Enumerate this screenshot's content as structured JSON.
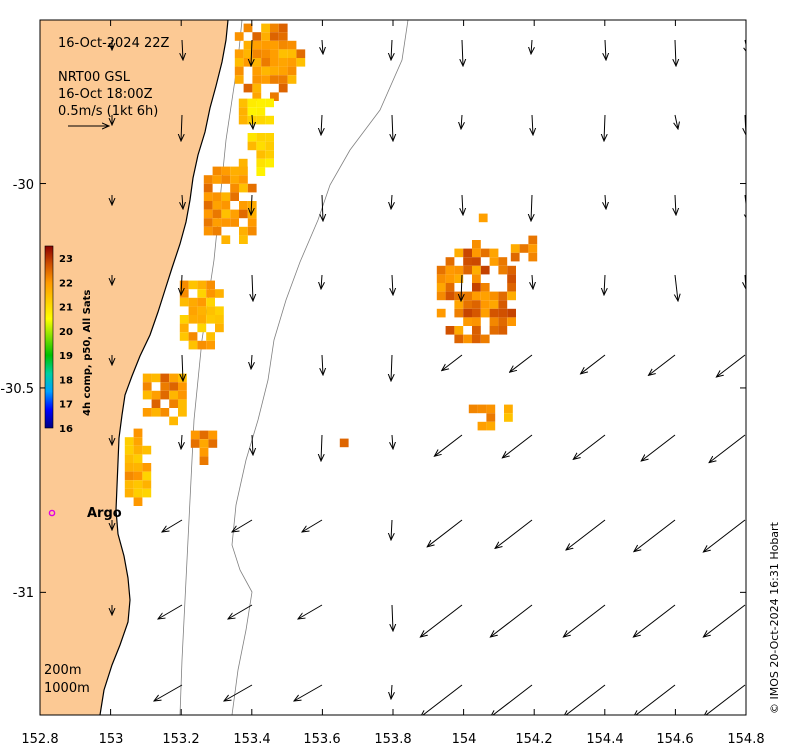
{
  "map": {
    "timestamp": "16-Oct-2024 22Z",
    "product_line1": "NRT00 GSL",
    "product_line2": "16-Oct 18:00Z",
    "scale_label": "0.5m/s (1kt 6h)",
    "credit": "© IMOS 20-Oct-2024 16:31 Hobart",
    "argo_label": "Argo",
    "depth_contours": [
      "200m",
      "1000m"
    ],
    "lon_ticks": [
      "152.8",
      "153",
      "153.2",
      "153.4",
      "153.6",
      "153.8",
      "154",
      "154.2",
      "154.4",
      "154.6",
      "154.8"
    ],
    "lat_ticks": [
      "-30",
      "-30.5",
      "-31"
    ],
    "colors": {
      "land": "#fcc994",
      "coastline": "#000000",
      "contour": "#808080",
      "argo_marker": "#e000e0",
      "current_arrow": "#000000"
    }
  },
  "colorbar": {
    "title": "4h comp, p50, All Sats",
    "ticks": [
      "23",
      "22",
      "21",
      "20",
      "19",
      "18",
      "17",
      "16"
    ],
    "min": 16,
    "max": 23.5,
    "stops": [
      "#000080",
      "#0000ff",
      "#00a0ff",
      "#00d0a0",
      "#00c000",
      "#80e000",
      "#ffff00",
      "#ffcc00",
      "#ff9900",
      "#d05000",
      "#8b0000"
    ]
  },
  "chart_data": {
    "type": "heatmap",
    "title": "16-Oct-2024 22Z",
    "x_axis": {
      "range": [
        152.8,
        154.8
      ],
      "ticks": [
        152.8,
        153,
        153.2,
        153.4,
        153.6,
        153.8,
        154,
        154.2,
        154.4,
        154.6,
        154.8
      ]
    },
    "y_axis": {
      "range": [
        -31.3,
        -29.6
      ],
      "ticks": [
        -30,
        -30.5,
        -31
      ]
    },
    "argo_float": {
      "lon": 152.83,
      "lat": -30.8
    },
    "sst_patches": [
      {
        "lon": 153.38,
        "lat": -29.68,
        "value": 21.2
      },
      {
        "lon": 153.42,
        "lat": -29.72,
        "value": 22.6
      },
      {
        "lon": 153.4,
        "lat": -29.85,
        "value": 21.6
      },
      {
        "lon": 153.43,
        "lat": -29.92,
        "value": 21.0
      },
      {
        "lon": 153.28,
        "lat": -30.03,
        "value": 22.0
      },
      {
        "lon": 153.32,
        "lat": -30.07,
        "value": 22.3
      },
      {
        "lon": 153.23,
        "lat": -30.26,
        "value": 21.5
      },
      {
        "lon": 153.25,
        "lat": -30.32,
        "value": 21.8
      },
      {
        "lon": 153.12,
        "lat": -30.49,
        "value": 22.1
      },
      {
        "lon": 153.09,
        "lat": -30.6,
        "value": 21.8
      },
      {
        "lon": 153.06,
        "lat": -30.7,
        "value": 21.6
      },
      {
        "lon": 153.25,
        "lat": -30.61,
        "value": 22.2
      },
      {
        "lon": 153.97,
        "lat": -30.22,
        "value": 22.3
      },
      {
        "lon": 154.06,
        "lat": -30.28,
        "value": 22.4
      },
      {
        "lon": 154.12,
        "lat": -30.31,
        "value": 22.6
      },
      {
        "lon": 154.0,
        "lat": -30.36,
        "value": 22.2
      },
      {
        "lon": 154.02,
        "lat": -30.55,
        "value": 22.0
      },
      {
        "lon": 154.16,
        "lat": -30.15,
        "value": 22.1
      },
      {
        "lon": 154.05,
        "lat": -30.08,
        "value": 22.3
      }
    ],
    "current_vectors_note": "surface current arrows, scale 0.5 m/s"
  }
}
